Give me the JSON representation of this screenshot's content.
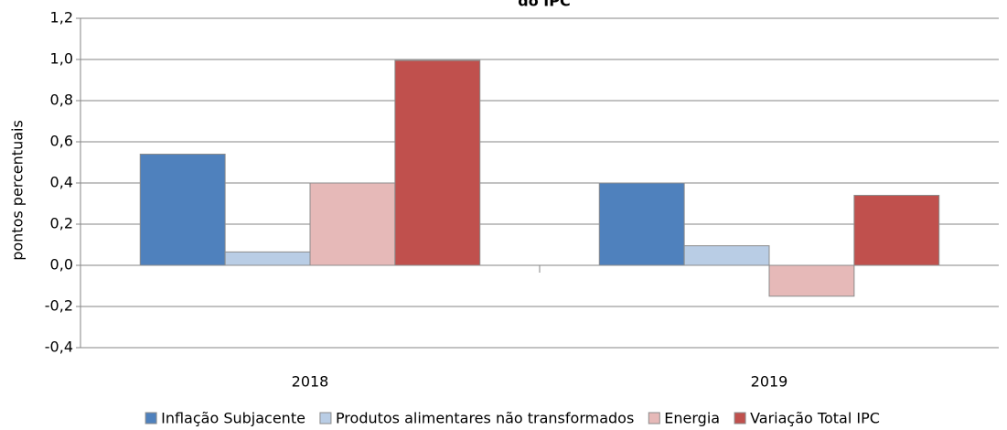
{
  "chart_data": {
    "type": "bar",
    "title": "do IPC",
    "ylabel": "pontos percentuais",
    "categories": [
      "2018",
      "2019"
    ],
    "series": [
      {
        "name": "Inflação Subjacente",
        "color": "#4f81bd",
        "values": [
          0.54,
          0.4
        ]
      },
      {
        "name": "Produtos alimentares não transformados",
        "color": "#b9cde5",
        "values": [
          0.065,
          0.095
        ]
      },
      {
        "name": "Energia",
        "color": "#e6b9b8",
        "values": [
          0.4,
          -0.15
        ]
      },
      {
        "name": "Variação Total IPC",
        "color": "#c0504d",
        "values": [
          0.995,
          0.34
        ]
      }
    ],
    "ylim": [
      -0.4,
      1.2
    ],
    "yticks": [
      {
        "value": -0.4,
        "label": "-0,4"
      },
      {
        "value": -0.2,
        "label": "-0,2"
      },
      {
        "value": 0,
        "label": "0,0"
      },
      {
        "value": 0.2,
        "label": "0,2"
      },
      {
        "value": 0.4,
        "label": "0,4"
      },
      {
        "value": 0.6,
        "label": "0,6"
      },
      {
        "value": 0.8,
        "label": "0,8"
      },
      {
        "value": 1.0,
        "label": "1,0"
      },
      {
        "value": 1.2,
        "label": "1,2"
      }
    ],
    "grid": true,
    "legend": "bottom"
  }
}
